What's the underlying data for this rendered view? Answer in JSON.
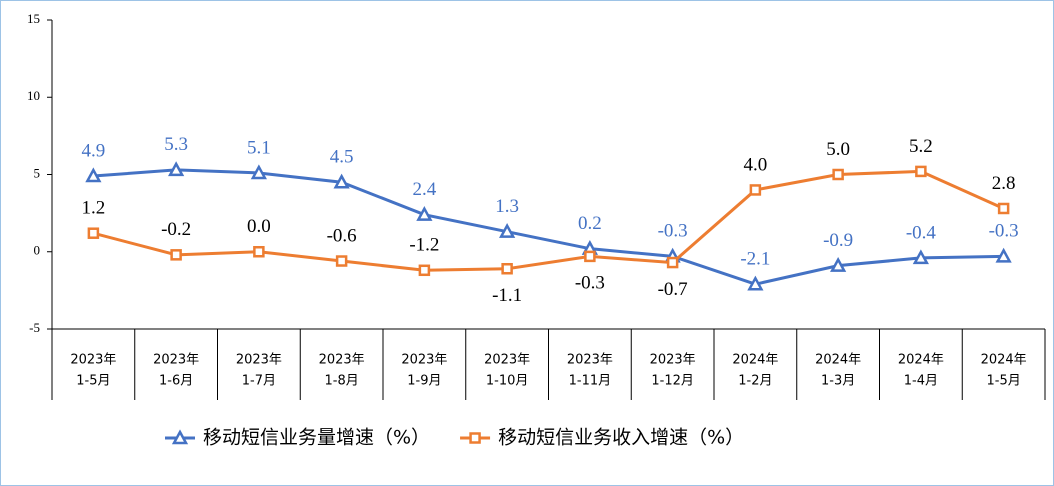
{
  "chart_data": {
    "type": "line",
    "categories": [
      [
        "2023年",
        "1-5月"
      ],
      [
        "2023年",
        "1-6月"
      ],
      [
        "2023年",
        "1-7月"
      ],
      [
        "2023年",
        "1-8月"
      ],
      [
        "2023年",
        "1-9月"
      ],
      [
        "2023年",
        "1-10月"
      ],
      [
        "2023年",
        "1-11月"
      ],
      [
        "2023年",
        "1-12月"
      ],
      [
        "2024年",
        "1-2月"
      ],
      [
        "2024年",
        "1-3月"
      ],
      [
        "2024年",
        "1-4月"
      ],
      [
        "2024年",
        "1-5月"
      ]
    ],
    "series": [
      {
        "name": "移动短信业务量增速（%）",
        "color": "#4472c4",
        "marker": "triangle",
        "values": [
          4.9,
          5.3,
          5.1,
          4.5,
          2.4,
          1.3,
          0.2,
          -0.3,
          -2.1,
          -0.9,
          -0.4,
          -0.3
        ],
        "value_labels": [
          "4.9",
          "5.3",
          "5.1",
          "4.5",
          "2.4",
          "1.3",
          "0.2",
          "-0.3",
          "-2.1",
          "-0.9",
          "-0.4",
          "-0.3"
        ]
      },
      {
        "name": "移动短信业务收入增速（%）",
        "color": "#ed7d31",
        "marker": "square",
        "values": [
          1.2,
          -0.2,
          0.0,
          -0.6,
          -1.2,
          -1.1,
          -0.3,
          -0.7,
          4.0,
          5.0,
          5.2,
          2.8
        ],
        "value_labels": [
          "1.2",
          "-0.2",
          "0.0",
          "-0.6",
          "-1.2",
          "-1.1",
          "-0.3",
          "-0.7",
          "4.0",
          "5.0",
          "5.2",
          "2.8"
        ]
      }
    ],
    "ylim": [
      -5,
      15
    ],
    "yticks": [
      -5,
      0,
      5,
      10,
      15
    ],
    "legend": "bottom"
  }
}
